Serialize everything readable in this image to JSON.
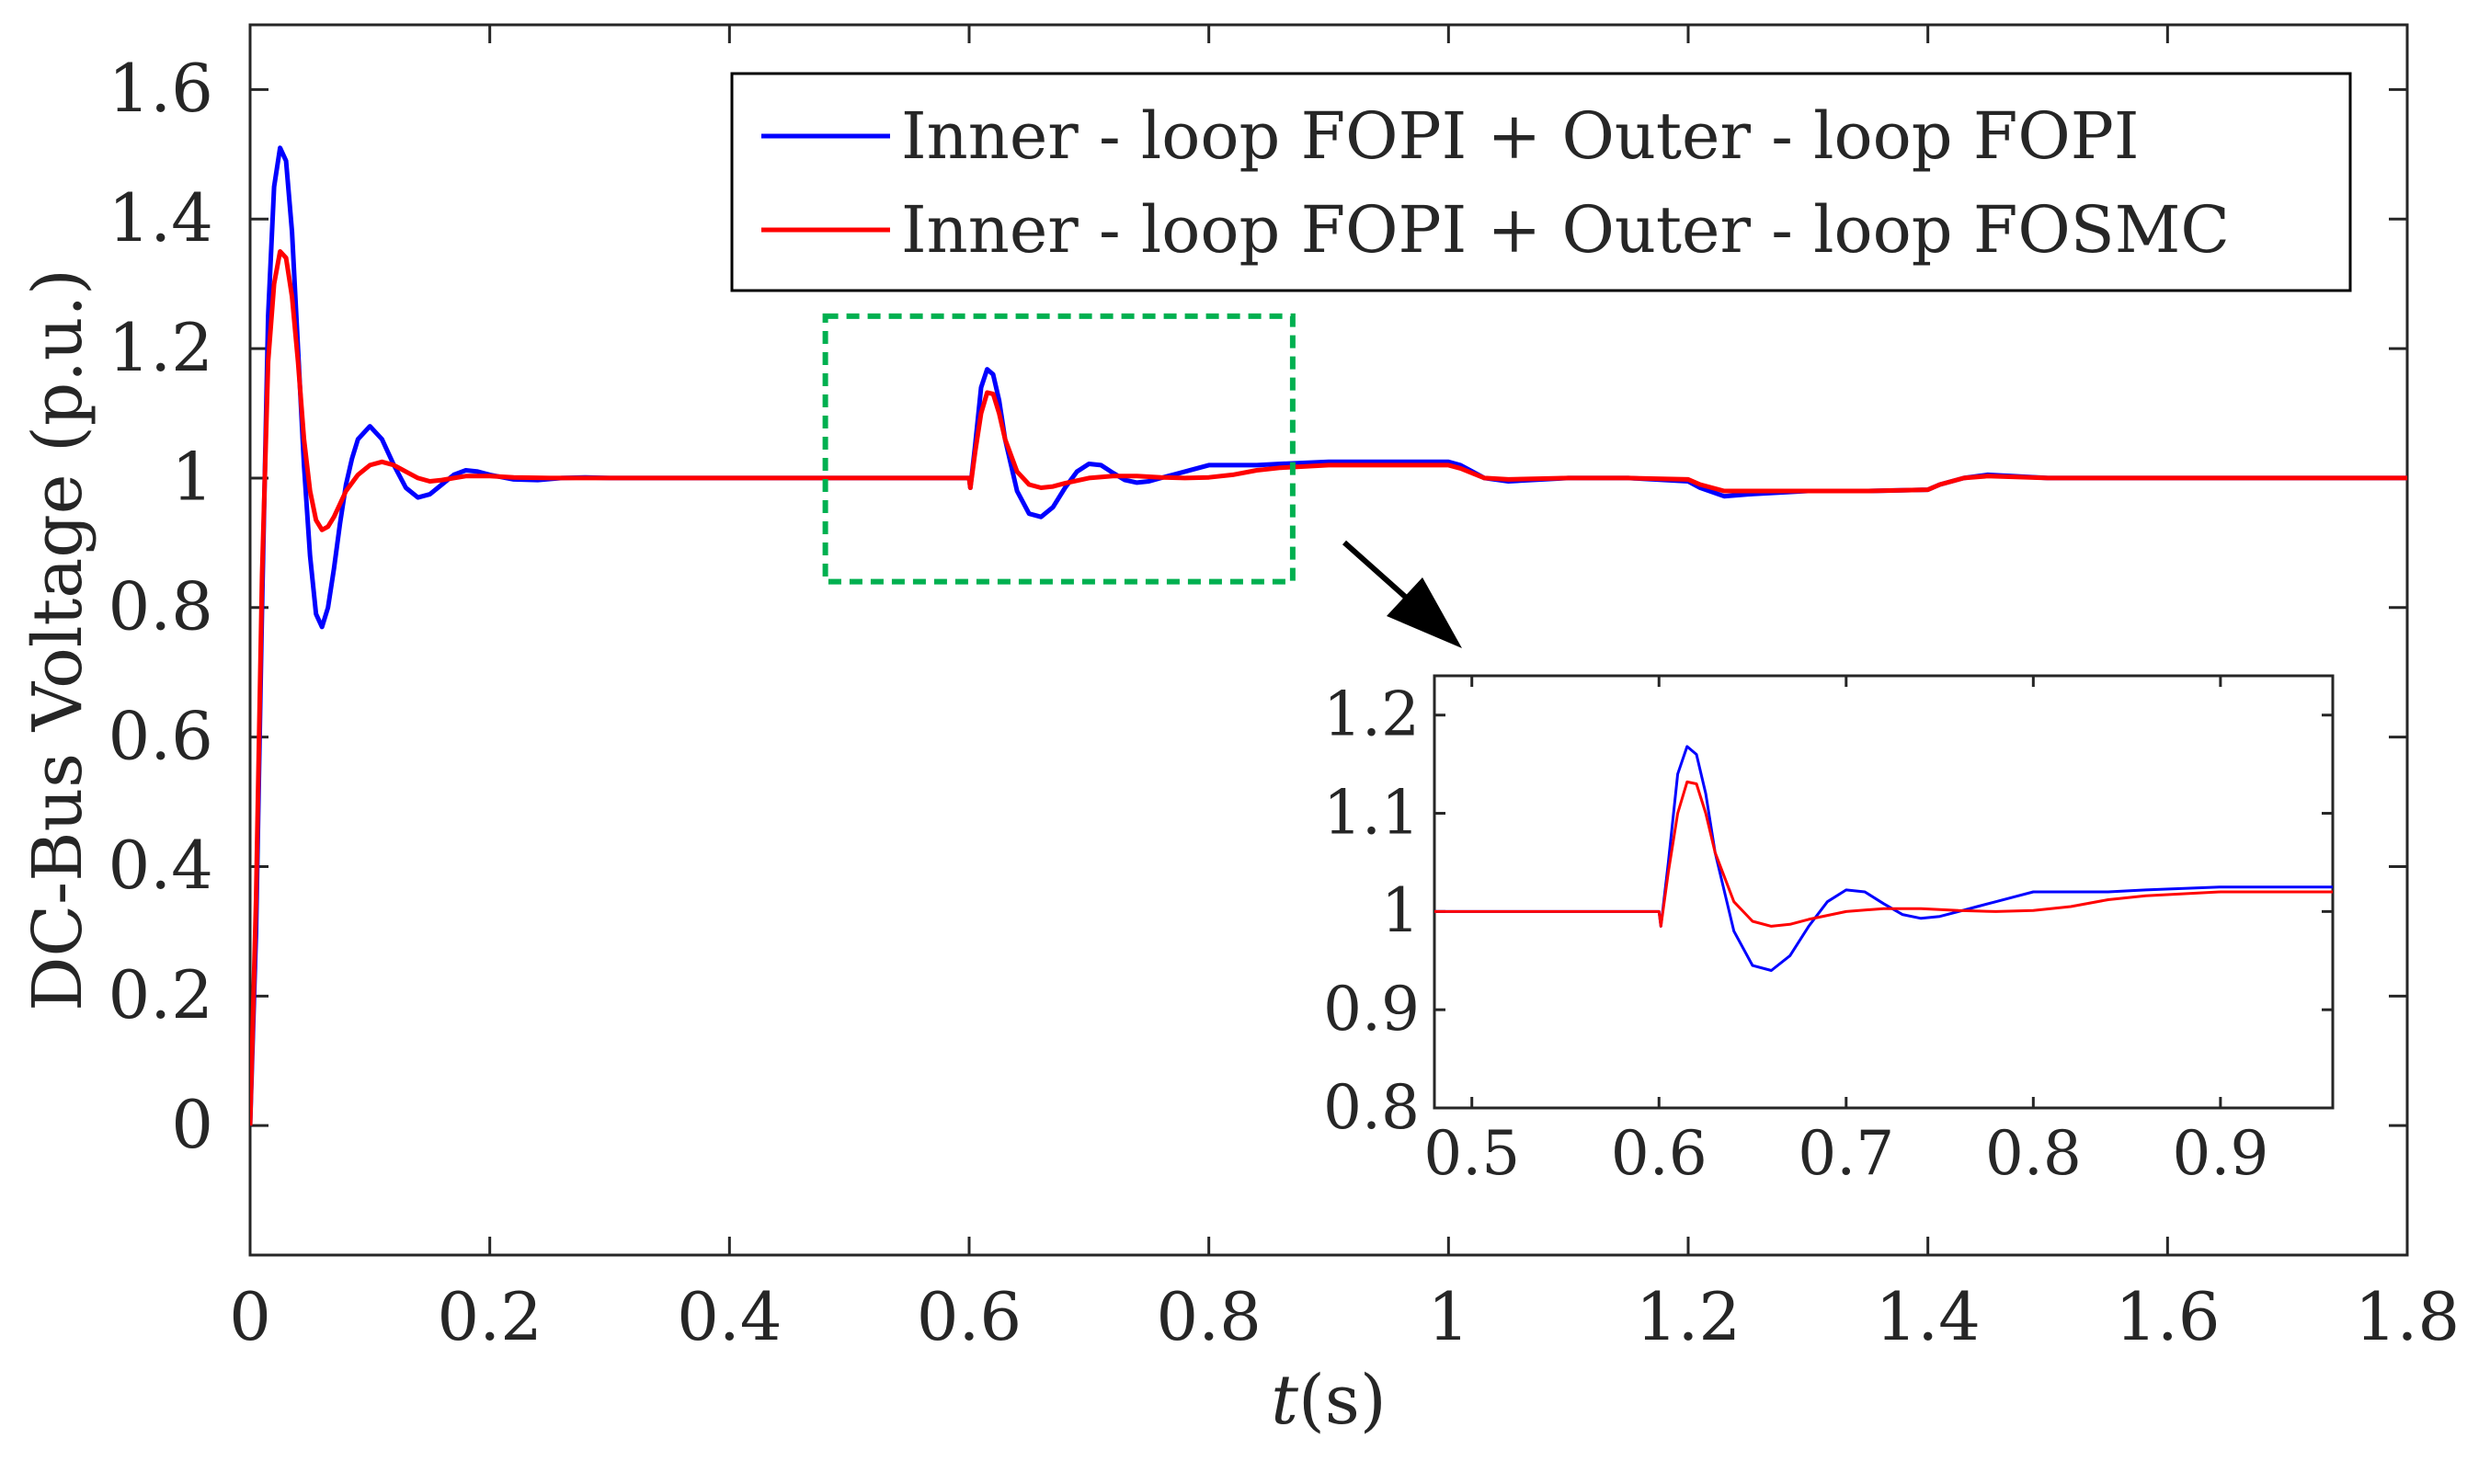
{
  "chart_data": {
    "type": "line",
    "title": "",
    "xlabel": "t",
    "xlabel_unit": "(s)",
    "ylabel": "DC-Bus Voltage  (p.u.)",
    "xlim": [
      0,
      1.8
    ],
    "ylim": [
      -0.2,
      1.7
    ],
    "xticks": [
      0,
      0.2,
      0.4,
      0.6,
      0.8,
      1,
      1.2,
      1.4,
      1.6,
      1.8
    ],
    "xtick_labels": [
      "0",
      "0.2",
      "0.4",
      "0.6",
      "0.8",
      "1",
      "1.2",
      "1.4",
      "1.6",
      "1.8"
    ],
    "yticks": [
      0,
      0.2,
      0.4,
      0.6,
      0.8,
      1,
      1.2,
      1.4,
      1.6
    ],
    "ytick_labels": [
      "0",
      "0.2",
      "0.4",
      "0.6",
      "0.8",
      "1",
      "1.2",
      "1.4",
      "1.6"
    ],
    "legend_position": "top-right",
    "series": [
      {
        "name": "Inner - loop FOPI + Outer - loop FOPI",
        "color": "#0000ff",
        "x": [
          0,
          0.005,
          0.01,
          0.015,
          0.02,
          0.025,
          0.03,
          0.035,
          0.04,
          0.045,
          0.05,
          0.055,
          0.06,
          0.065,
          0.07,
          0.075,
          0.08,
          0.085,
          0.09,
          0.1,
          0.11,
          0.12,
          0.13,
          0.14,
          0.15,
          0.16,
          0.17,
          0.18,
          0.19,
          0.2,
          0.22,
          0.24,
          0.26,
          0.28,
          0.3,
          0.4,
          0.5,
          0.6,
          0.601,
          0.605,
          0.61,
          0.615,
          0.62,
          0.625,
          0.63,
          0.64,
          0.65,
          0.66,
          0.67,
          0.68,
          0.69,
          0.7,
          0.71,
          0.72,
          0.73,
          0.74,
          0.75,
          0.76,
          0.77,
          0.78,
          0.79,
          0.8,
          0.82,
          0.84,
          0.86,
          0.9,
          0.95,
          1.0,
          1.01,
          1.03,
          1.05,
          1.1,
          1.15,
          1.2,
          1.21,
          1.23,
          1.25,
          1.3,
          1.35,
          1.4,
          1.41,
          1.43,
          1.45,
          1.5,
          1.6,
          1.7,
          1.8
        ],
        "values": [
          0,
          0.3,
          0.8,
          1.25,
          1.45,
          1.51,
          1.49,
          1.38,
          1.2,
          1.02,
          0.88,
          0.79,
          0.77,
          0.8,
          0.86,
          0.93,
          0.99,
          1.03,
          1.06,
          1.08,
          1.06,
          1.02,
          0.985,
          0.97,
          0.975,
          0.99,
          1.005,
          1.012,
          1.01,
          1.005,
          0.998,
          0.997,
          1.0,
          1.001,
          1.0,
          1.0,
          1.0,
          1.0,
          0.985,
          1.05,
          1.14,
          1.168,
          1.16,
          1.12,
          1.06,
          0.98,
          0.945,
          0.94,
          0.955,
          0.985,
          1.01,
          1.022,
          1.02,
          1.008,
          0.997,
          0.993,
          0.995,
          1.0,
          1.005,
          1.01,
          1.015,
          1.02,
          1.02,
          1.02,
          1.022,
          1.025,
          1.025,
          1.025,
          1.02,
          1.0,
          0.995,
          1.0,
          1.0,
          0.995,
          0.985,
          0.972,
          0.975,
          0.98,
          0.98,
          0.982,
          0.99,
          1.0,
          1.005,
          1.0,
          1.0,
          1.0,
          1.0
        ]
      },
      {
        "name": "Inner - loop FOPI + Outer - loop FOSMC",
        "color": "#ff0000",
        "x": [
          0,
          0.005,
          0.01,
          0.015,
          0.02,
          0.025,
          0.03,
          0.035,
          0.04,
          0.045,
          0.05,
          0.055,
          0.06,
          0.065,
          0.07,
          0.075,
          0.08,
          0.09,
          0.1,
          0.11,
          0.12,
          0.13,
          0.14,
          0.15,
          0.16,
          0.17,
          0.18,
          0.2,
          0.22,
          0.25,
          0.3,
          0.4,
          0.5,
          0.6,
          0.601,
          0.605,
          0.61,
          0.615,
          0.62,
          0.625,
          0.63,
          0.64,
          0.65,
          0.66,
          0.67,
          0.68,
          0.7,
          0.72,
          0.74,
          0.76,
          0.78,
          0.8,
          0.82,
          0.84,
          0.86,
          0.9,
          0.95,
          1.0,
          1.01,
          1.03,
          1.05,
          1.1,
          1.15,
          1.2,
          1.21,
          1.23,
          1.25,
          1.3,
          1.35,
          1.4,
          1.41,
          1.43,
          1.45,
          1.5,
          1.6,
          1.7,
          1.8
        ],
        "values": [
          0,
          0.35,
          0.85,
          1.18,
          1.3,
          1.35,
          1.34,
          1.28,
          1.18,
          1.06,
          0.98,
          0.935,
          0.92,
          0.925,
          0.94,
          0.96,
          0.98,
          1.005,
          1.02,
          1.025,
          1.02,
          1.01,
          1.0,
          0.995,
          0.997,
          1.0,
          1.003,
          1.003,
          1.001,
          1.0,
          1.0,
          1.0,
          1.0,
          1.0,
          0.985,
          1.04,
          1.1,
          1.132,
          1.13,
          1.1,
          1.06,
          1.01,
          0.99,
          0.985,
          0.987,
          0.992,
          1.0,
          1.003,
          1.003,
          1.001,
          1.0,
          1.001,
          1.005,
          1.012,
          1.016,
          1.02,
          1.02,
          1.02,
          1.015,
          1.0,
          0.998,
          1.0,
          1.0,
          0.998,
          0.99,
          0.98,
          0.98,
          0.98,
          0.98,
          0.982,
          0.99,
          1.0,
          1.003,
          1.0,
          1.0,
          1.0,
          1.0
        ]
      }
    ],
    "highlight_box": {
      "x_range": [
        0.48,
        0.87
      ],
      "y_range": [
        0.84,
        1.25
      ],
      "color": "#00b050"
    },
    "inset": {
      "type": "line",
      "xlim": [
        0.48,
        0.96
      ],
      "ylim": [
        0.8,
        1.24
      ],
      "xticks": [
        0.5,
        0.6,
        0.7,
        0.8,
        0.9
      ],
      "xtick_labels": [
        "0.5",
        "0.6",
        "0.7",
        "0.8",
        "0.9"
      ],
      "yticks": [
        0.8,
        0.9,
        1,
        1.1,
        1.2
      ],
      "ytick_labels": [
        "0.8",
        "0.9",
        "1",
        "1.1",
        "1.2"
      ],
      "series": [
        {
          "name": "Inner - loop FOPI + Outer - loop FOPI",
          "color": "#0000ff",
          "x": [
            0.48,
            0.6,
            0.601,
            0.605,
            0.61,
            0.615,
            0.62,
            0.625,
            0.63,
            0.64,
            0.65,
            0.66,
            0.67,
            0.68,
            0.69,
            0.7,
            0.71,
            0.72,
            0.73,
            0.74,
            0.75,
            0.76,
            0.77,
            0.78,
            0.79,
            0.8,
            0.82,
            0.84,
            0.86,
            0.9,
            0.96
          ],
          "values": [
            1.0,
            1.0,
            0.985,
            1.05,
            1.14,
            1.168,
            1.16,
            1.12,
            1.06,
            0.98,
            0.945,
            0.94,
            0.955,
            0.985,
            1.01,
            1.022,
            1.02,
            1.008,
            0.997,
            0.993,
            0.995,
            1.0,
            1.005,
            1.01,
            1.015,
            1.02,
            1.02,
            1.02,
            1.022,
            1.025,
            1.025
          ]
        },
        {
          "name": "Inner - loop FOPI + Outer - loop FOSMC",
          "color": "#ff0000",
          "x": [
            0.48,
            0.6,
            0.601,
            0.605,
            0.61,
            0.615,
            0.62,
            0.625,
            0.63,
            0.64,
            0.65,
            0.66,
            0.67,
            0.68,
            0.7,
            0.72,
            0.74,
            0.76,
            0.78,
            0.8,
            0.82,
            0.84,
            0.86,
            0.9,
            0.96
          ],
          "values": [
            1.0,
            1.0,
            0.985,
            1.04,
            1.1,
            1.132,
            1.13,
            1.1,
            1.06,
            1.01,
            0.99,
            0.985,
            0.987,
            0.992,
            1.0,
            1.003,
            1.003,
            1.001,
            1.0,
            1.001,
            1.005,
            1.012,
            1.016,
            1.02,
            1.02
          ]
        }
      ]
    }
  }
}
